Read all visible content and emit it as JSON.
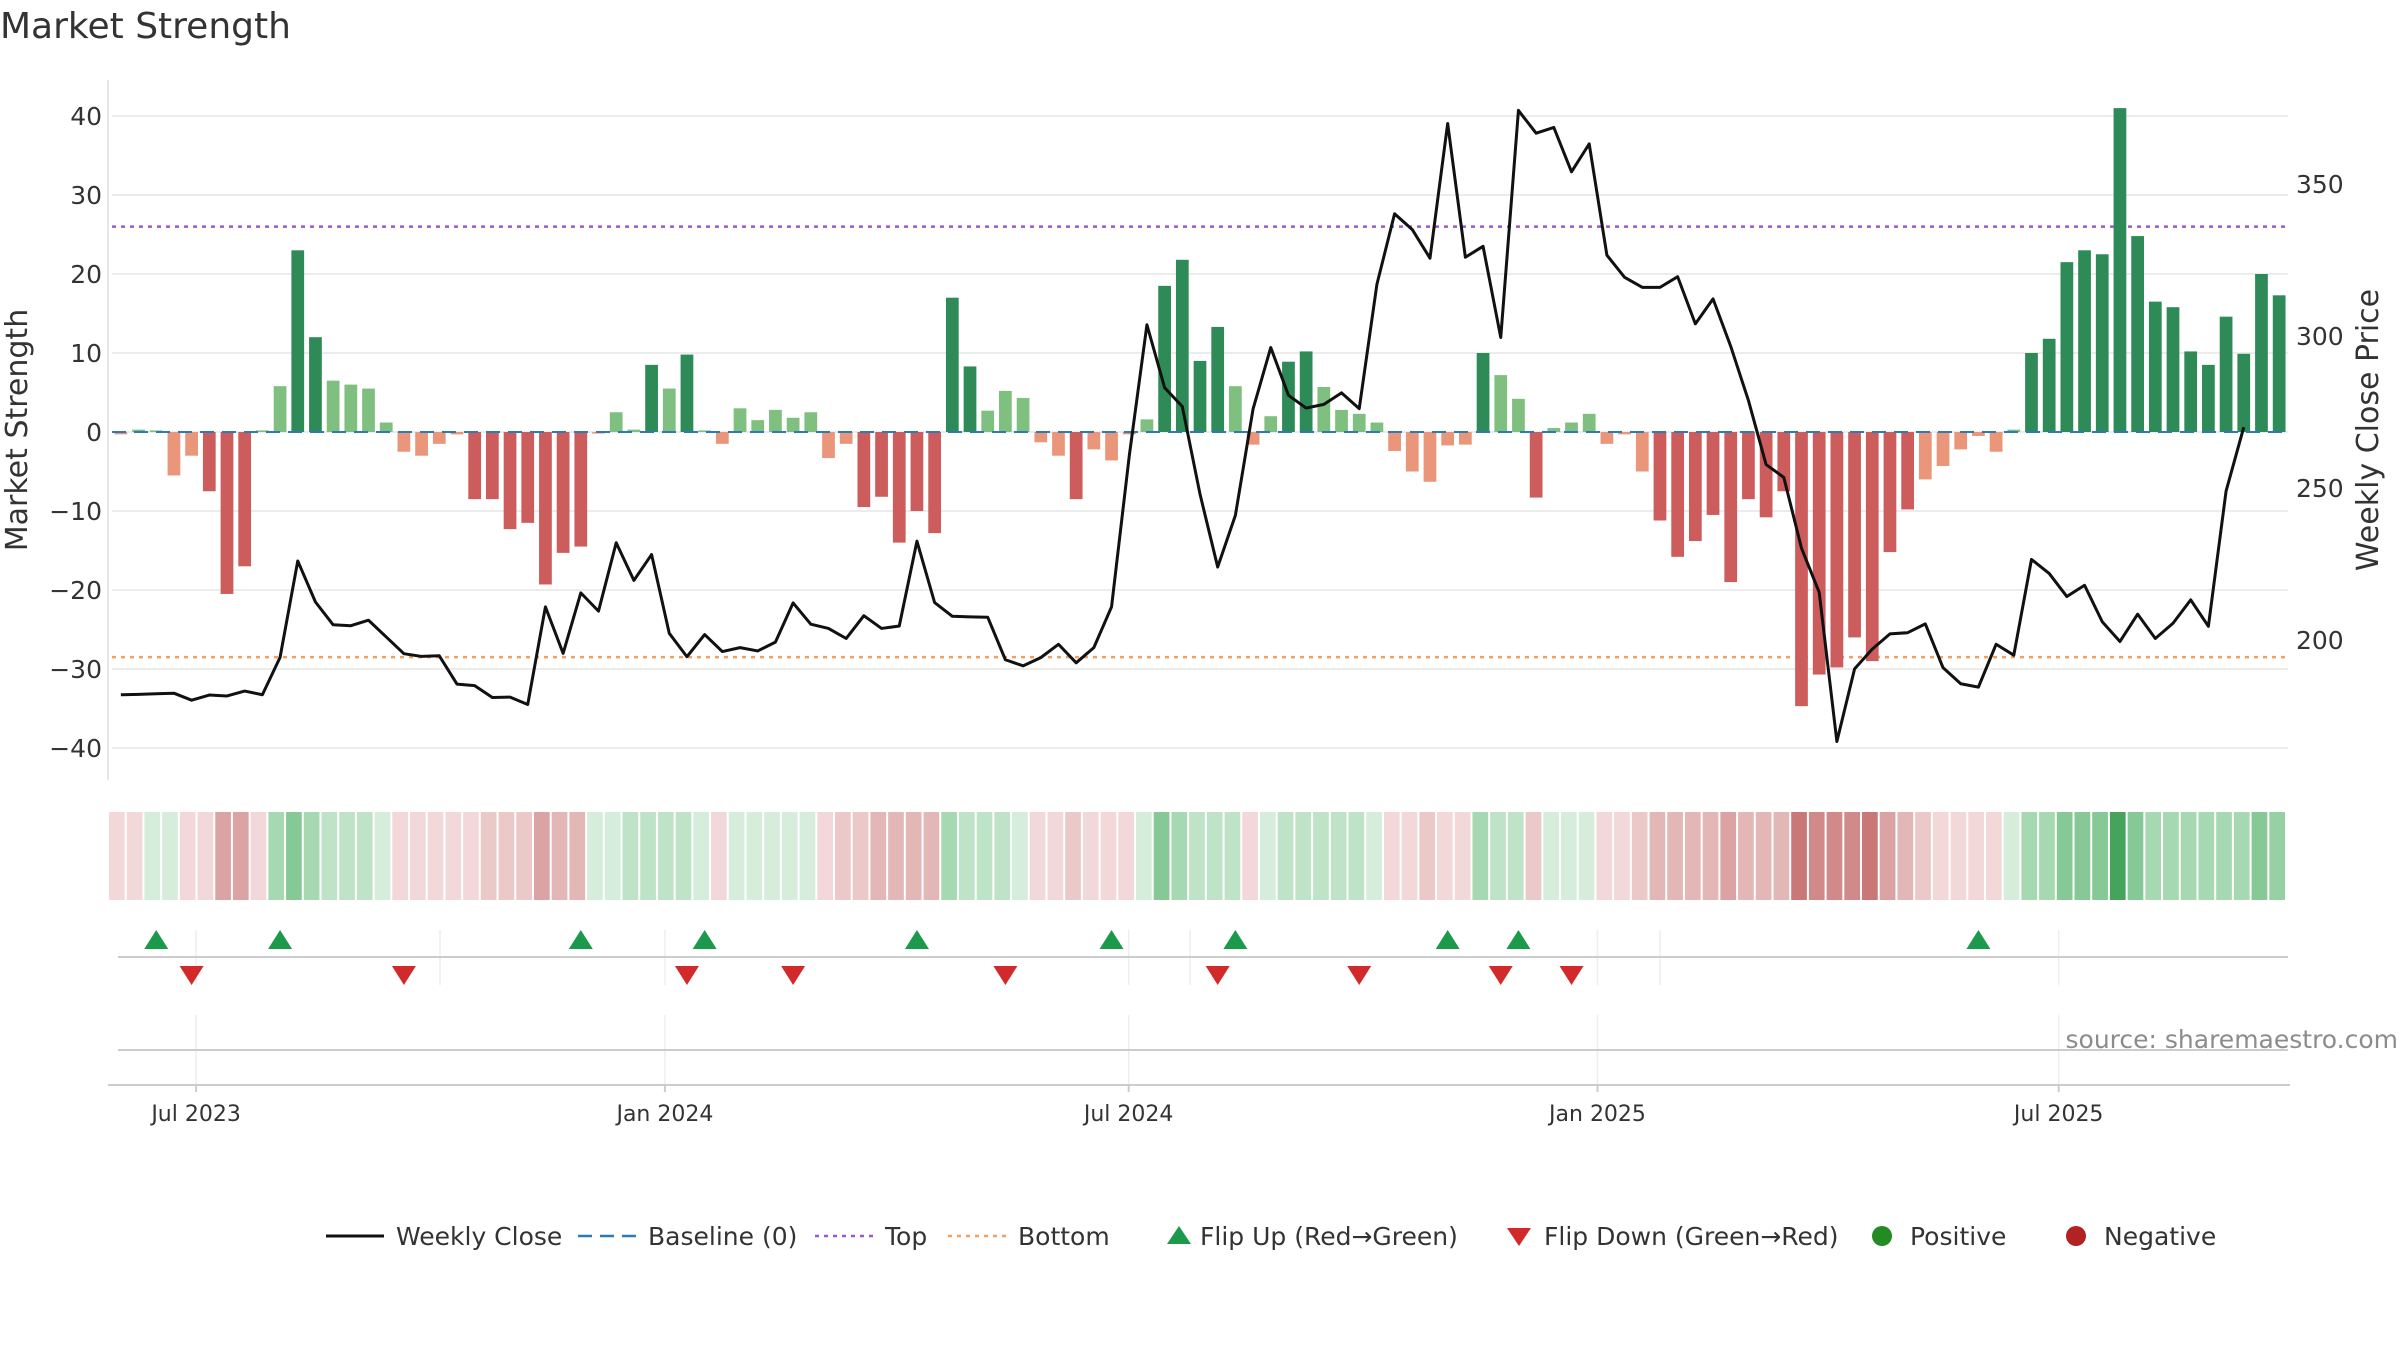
{
  "chart_data": {
    "type": "bar",
    "title": "Market Strength",
    "ylabel": "Market Strength",
    "y2label": "Weekly Close Price",
    "ylim": [
      -44,
      44
    ],
    "y2lim": [
      160,
      380
    ],
    "yticks": [
      40,
      30,
      20,
      10,
      0,
      -10,
      -20,
      -30,
      -40
    ],
    "y2ticks": [
      350,
      300,
      250,
      200
    ],
    "top_level": 26,
    "bottom_level": -28.5,
    "baseline": 0,
    "x_start": "2023-05-29",
    "x_end": "2025-09-29",
    "x_ticks": [
      {
        "date": "2023-07-01",
        "label": "Jul 2023"
      },
      {
        "date": "2024-01-01",
        "label": "Jan 2024"
      },
      {
        "date": "2024-07-01",
        "label": "Jul 2024"
      },
      {
        "date": "2025-01-01",
        "label": "Jan 2025"
      },
      {
        "date": "2025-07-01",
        "label": "Jul 2025"
      }
    ],
    "grid": true,
    "legend_placement": "bottom",
    "strength": [
      -0.3,
      0.3,
      0.2,
      -5.5,
      -3,
      -7.5,
      -20.5,
      -17,
      0.2,
      5.8,
      23,
      12,
      6.5,
      6,
      5.5,
      1.2,
      -2.5,
      -3,
      -1.5,
      -0.3,
      -8.5,
      -8.5,
      -12.3,
      -11.5,
      -19.3,
      -15.3,
      -14.5,
      -0.2,
      2.5,
      0.3,
      8.5,
      5.5,
      9.8,
      0.2,
      -1.5,
      3,
      1.5,
      2.8,
      1.8,
      2.5,
      -3.3,
      -1.5,
      -9.5,
      -8.2,
      -14,
      -10,
      -12.8,
      17,
      8.3,
      2.7,
      5.2,
      4.3,
      -1.3,
      -3,
      -8.5,
      -2.2,
      -3.6,
      -0.3,
      1.6,
      18.5,
      21.8,
      9,
      13.3,
      5.8,
      -1.6,
      2,
      8.9,
      10.2,
      5.7,
      2.8,
      2.3,
      1.2,
      -2.4,
      -5,
      -6.3,
      -1.7,
      -1.6,
      10,
      7.2,
      4.2,
      -8.3,
      0.5,
      1.2,
      2.3,
      -1.5,
      -0.3,
      -5,
      -11.2,
      -15.8,
      -13.8,
      -10.5,
      -19,
      -8.5,
      -10.8,
      -7.5,
      -34.7,
      -30.7,
      -29.8,
      -26,
      -29,
      -15.2,
      -9.8,
      -6,
      -4.3,
      -2.2,
      -0.5,
      -2.5,
      0.3,
      10,
      11.8,
      21.5,
      23,
      22.5,
      41,
      24.8,
      16.5,
      15.8,
      10.2,
      8.5,
      14.6,
      9.9,
      20,
      17.3
    ],
    "close": [
      182,
      182.1,
      182.3,
      182.5,
      180.2,
      181.9,
      181.6,
      183.2,
      182,
      194.3,
      226,
      212.5,
      205,
      204.7,
      206.5,
      201,
      195.5,
      194.6,
      194.8,
      185.5,
      185,
      181.1,
      181.2,
      178.8,
      210.9,
      195.6,
      215.5,
      209.5,
      232,
      219.6,
      228.1,
      202.2,
      194.5,
      201.8,
      196.2,
      197.5,
      196.4,
      199.3,
      212.2,
      205.2,
      203.8,
      200.5,
      208,
      203.8,
      204.6,
      232.5,
      212.3,
      207.8,
      207.6,
      207.5,
      193.5,
      191.5,
      194.2,
      198.6,
      192.5,
      197.5,
      210.9,
      260.5,
      303.7,
      283,
      276.8,
      248,
      224,
      241,
      276,
      296.2,
      280.5,
      276.3,
      277.5,
      281.3,
      276.1,
      317,
      340.2,
      335,
      325.6,
      369.9,
      325.9,
      329.5,
      299.5,
      374.2,
      366.7,
      368.6,
      354,
      363.2,
      326.6,
      319.3,
      316,
      316,
      319.5,
      304,
      312.2,
      296.6,
      278.8,
      257.7,
      253.5,
      230.2,
      215.7,
      166.6,
      190.5,
      197,
      202,
      202.4,
      205.3,
      190.9,
      185.6,
      184.5,
      198.6,
      195,
      226.5,
      221.9,
      214.3,
      218,
      206,
      199.5,
      208.5,
      200.5,
      205.5,
      213.2,
      204.5,
      249,
      270
    ]
  },
  "strip": {
    "colors": [
      "#f2d8d8",
      "#f2d8d8",
      "#d6eddc",
      "#d6eddc",
      "#f2d8d8",
      "#f2d8d8",
      "#dba3a3",
      "#dba3a3",
      "#f2d8d8",
      "#a6d9b1",
      "#86c896",
      "#a6d9b1",
      "#bfe3c7",
      "#bfe3c7",
      "#bfe3c7",
      "#d6eddc",
      "#f2d8d8",
      "#f2d8d8",
      "#f2d8d8",
      "#f2d8d8",
      "#f2d8d8",
      "#ebc9c9",
      "#ebc9c9",
      "#ebc9c9",
      "#dba3a3",
      "#e4b7b7",
      "#e4b7b7",
      "#d6eddc",
      "#d6eddc",
      "#bfe3c7",
      "#bfe3c7",
      "#bfe3c7",
      "#bfe3c7",
      "#d6eddc",
      "#f2d8d8",
      "#d6eddc",
      "#d6eddc",
      "#d6eddc",
      "#d6eddc",
      "#d6eddc",
      "#f2d8d8",
      "#ebc9c9",
      "#ebc9c9",
      "#e4b7b7",
      "#e4b7b7",
      "#e4b7b7",
      "#e4b7b7",
      "#a6d9b1",
      "#bfe3c7",
      "#bfe3c7",
      "#bfe3c7",
      "#d6eddc",
      "#f2d8d8",
      "#f2d8d8",
      "#ebc9c9",
      "#f2d8d8",
      "#f2d8d8",
      "#f2d8d8",
      "#d6eddc",
      "#86c896",
      "#a6d9b1",
      "#bfe3c7",
      "#bfe3c7",
      "#bfe3c7",
      "#f2d8d8",
      "#d6eddc",
      "#bfe3c7",
      "#bfe3c7",
      "#bfe3c7",
      "#bfe3c7",
      "#bfe3c7",
      "#d6eddc",
      "#f2d8d8",
      "#f2d8d8",
      "#ebc9c9",
      "#f2d8d8",
      "#f2d8d8",
      "#a6d9b1",
      "#bfe3c7",
      "#bfe3c7",
      "#ebc9c9",
      "#d6eddc",
      "#d6eddc",
      "#d6eddc",
      "#f2d8d8",
      "#f2d8d8",
      "#ebc9c9",
      "#e4b7b7",
      "#e4b7b7",
      "#e4b7b7",
      "#e4b7b7",
      "#dba3a3",
      "#e4b7b7",
      "#e4b7b7",
      "#e4b7b7",
      "#c97878",
      "#d08a8a",
      "#d08a8a",
      "#d08a8a",
      "#c97878",
      "#dba3a3",
      "#e4b7b7",
      "#ebc9c9",
      "#f2d8d8",
      "#f2d8d8",
      "#f2d8d8",
      "#f2d8d8",
      "#d6eddc",
      "#a6d9b1",
      "#a6d9b1",
      "#86c896",
      "#86c896",
      "#86c896",
      "#45a35b",
      "#86c896",
      "#a6d9b1",
      "#a6d9b1",
      "#a6d9b1",
      "#a6d9b1",
      "#a6d9b1",
      "#a6d9b1",
      "#86c896",
      "#96d0a3"
    ]
  },
  "flips": {
    "up": [
      2,
      9,
      26,
      33,
      45,
      56,
      63,
      75,
      79,
      105
    ],
    "down": [
      4,
      16,
      32,
      38,
      50,
      62,
      70,
      78,
      82
    ]
  },
  "source": "source: sharemaestro.com",
  "legend": [
    {
      "label": "Weekly Close",
      "kind": "solid-line",
      "color": "#111111"
    },
    {
      "label": "Baseline (0)",
      "kind": "dash-line",
      "color": "#2b7bb9"
    },
    {
      "label": "Top",
      "kind": "dot-line",
      "color": "#9b59d0"
    },
    {
      "label": "Bottom",
      "kind": "dot-line",
      "color": "#f0a060"
    },
    {
      "label": "Flip Up (Red→Green)",
      "kind": "triangle-up",
      "color": "#1a9a4a"
    },
    {
      "label": "Flip Down (Green→Red)",
      "kind": "triangle-down",
      "color": "#d22a2a"
    },
    {
      "label": "Positive",
      "kind": "circle",
      "color": "#228b22"
    },
    {
      "label": "Negative",
      "kind": "circle",
      "color": "#b22222"
    }
  ],
  "colors": {
    "pos_strong": "#2e8b57",
    "pos_light": "#7fbf7f",
    "neg_strong": "#cd5c5c",
    "neg_light": "#e9967a",
    "close_line": "#111111",
    "grid": "#e6e6e6"
  }
}
